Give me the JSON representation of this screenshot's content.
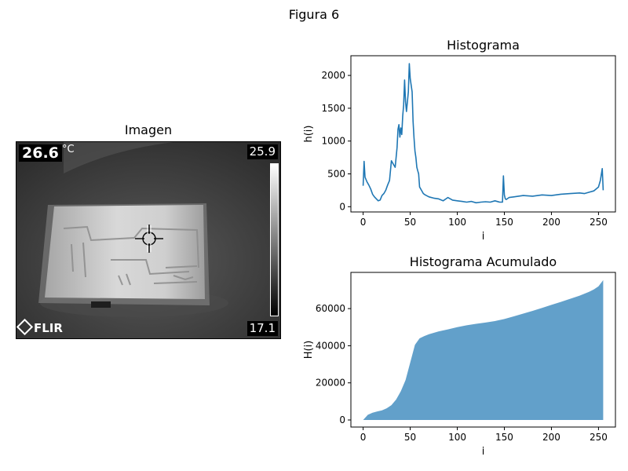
{
  "figure": {
    "title": "Figura 6"
  },
  "image_panel": {
    "title": "Imagen",
    "spot_temp": "26.6",
    "unit": "°C",
    "scale_max": "25.9",
    "scale_min": "17.1",
    "logo": "FLIR"
  },
  "chart_data": [
    {
      "type": "line",
      "title": "Histograma",
      "xlabel": "i",
      "ylabel": "h(i)",
      "xlim": [
        -13,
        268
      ],
      "ylim": [
        -80,
        2300
      ],
      "xticks": [
        0,
        50,
        100,
        150,
        200,
        250
      ],
      "yticks": [
        0,
        500,
        1000,
        1500,
        2000
      ],
      "color": "#1f77b4",
      "x": [
        0,
        1,
        2,
        4,
        6,
        8,
        10,
        12,
        14,
        16,
        18,
        20,
        22,
        24,
        26,
        28,
        30,
        32,
        34,
        36,
        37,
        38,
        39,
        40,
        41,
        42,
        43,
        44,
        45,
        46,
        47,
        48,
        49,
        50,
        51,
        52,
        53,
        54,
        55,
        56,
        57,
        58,
        59,
        60,
        62,
        64,
        66,
        70,
        75,
        80,
        85,
        90,
        95,
        100,
        105,
        110,
        115,
        120,
        125,
        130,
        135,
        140,
        145,
        148,
        149,
        150,
        151,
        152,
        155,
        160,
        170,
        180,
        190,
        200,
        210,
        220,
        230,
        235,
        240,
        245,
        250,
        252,
        254,
        255
      ],
      "y": [
        320,
        690,
        450,
        380,
        330,
        270,
        190,
        150,
        120,
        90,
        100,
        170,
        200,
        250,
        330,
        400,
        700,
        650,
        600,
        900,
        1180,
        1250,
        1060,
        1200,
        1100,
        1380,
        1550,
        1930,
        1600,
        1450,
        1600,
        1750,
        2180,
        1950,
        1850,
        1750,
        1300,
        1050,
        850,
        750,
        600,
        550,
        500,
        300,
        250,
        200,
        180,
        150,
        130,
        120,
        90,
        140,
        100,
        90,
        80,
        70,
        80,
        60,
        70,
        75,
        70,
        90,
        70,
        70,
        470,
        180,
        120,
        110,
        140,
        150,
        170,
        160,
        180,
        170,
        190,
        200,
        210,
        200,
        220,
        240,
        300,
        400,
        580,
        250
      ],
      "grid": false,
      "legend": "none"
    },
    {
      "type": "area",
      "title": "Histograma Acumulado",
      "xlabel": "i",
      "ylabel": "H(i)",
      "xlim": [
        -13,
        268
      ],
      "ylim": [
        -3800,
        79500
      ],
      "xticks": [
        0,
        50,
        100,
        150,
        200,
        250
      ],
      "yticks": [
        0,
        20000,
        40000,
        60000
      ],
      "color": "#1f77b4",
      "x": [
        0,
        5,
        10,
        15,
        20,
        25,
        30,
        35,
        40,
        45,
        50,
        55,
        60,
        65,
        70,
        80,
        90,
        100,
        110,
        120,
        130,
        140,
        150,
        160,
        170,
        180,
        190,
        200,
        210,
        220,
        230,
        240,
        245,
        250,
        255
      ],
      "y": [
        0,
        2800,
        3900,
        4600,
        5200,
        6300,
        8000,
        11000,
        15500,
        21500,
        31000,
        40500,
        44000,
        45200,
        46200,
        47700,
        48800,
        50000,
        51000,
        51800,
        52500,
        53300,
        54400,
        55800,
        57300,
        58800,
        60400,
        62000,
        63600,
        65300,
        67000,
        69000,
        70300,
        72000,
        75300
      ],
      "grid": false,
      "legend": "none"
    }
  ]
}
